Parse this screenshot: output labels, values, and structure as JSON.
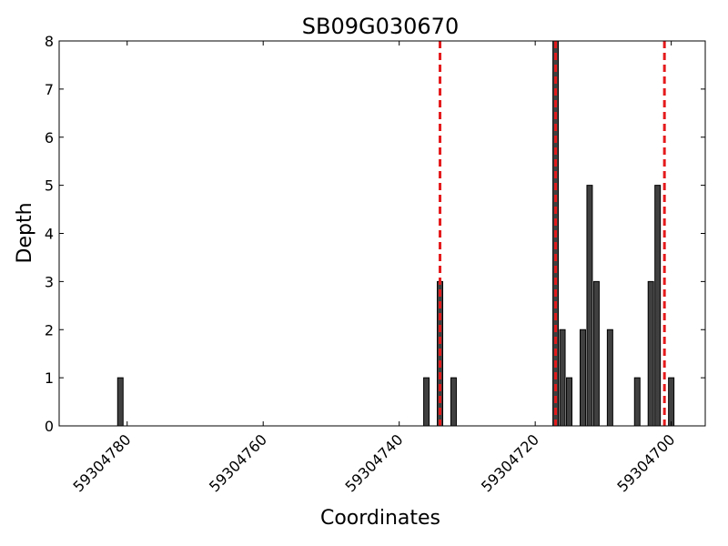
{
  "chart_data": {
    "type": "bar",
    "title": "SB09G030670",
    "xlabel": "Coordinates",
    "ylabel": "Depth",
    "xlim": [
      59304790,
      59304695
    ],
    "ylim": [
      0,
      8
    ],
    "x_reversed": true,
    "grid": false,
    "xticks": [
      59304780,
      59304760,
      59304740,
      59304720,
      59304700
    ],
    "xtick_labels": [
      "59304780",
      "59304760",
      "59304740",
      "59304720",
      "59304700"
    ],
    "yticks": [
      0,
      1,
      2,
      3,
      4,
      5,
      6,
      7,
      8
    ],
    "ytick_labels": [
      "0",
      "1",
      "2",
      "3",
      "4",
      "5",
      "6",
      "7",
      "8"
    ],
    "bar_color": "#404040",
    "bar_edge_color": "#000000",
    "marker_color": "#e41a1c",
    "bars": [
      {
        "x": 59304781,
        "depth": 1
      },
      {
        "x": 59304736,
        "depth": 1
      },
      {
        "x": 59304734,
        "depth": 3
      },
      {
        "x": 59304732,
        "depth": 1
      },
      {
        "x": 59304717,
        "depth": 8
      },
      {
        "x": 59304716,
        "depth": 2
      },
      {
        "x": 59304715,
        "depth": 1
      },
      {
        "x": 59304713,
        "depth": 2
      },
      {
        "x": 59304712,
        "depth": 5
      },
      {
        "x": 59304711,
        "depth": 3
      },
      {
        "x": 59304709,
        "depth": 2
      },
      {
        "x": 59304705,
        "depth": 1
      },
      {
        "x": 59304703,
        "depth": 3
      },
      {
        "x": 59304702,
        "depth": 5
      },
      {
        "x": 59304700,
        "depth": 1
      }
    ],
    "vertical_markers": [
      59304734,
      59304717,
      59304701
    ]
  }
}
